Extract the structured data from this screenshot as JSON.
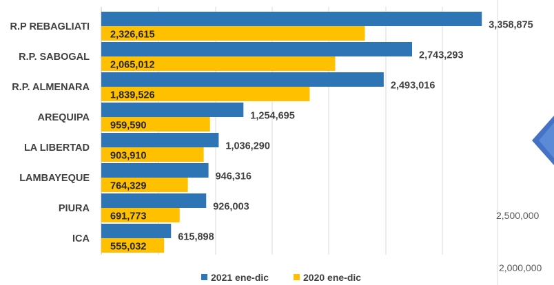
{
  "chart_data": {
    "type": "bar",
    "orientation": "horizontal",
    "categories": [
      "R.P REBAGLIATI",
      "R.P. SABOGAL",
      "R.P. ALMENARA",
      "AREQUIPA",
      "LA LIBERTAD",
      "LAMBAYEQUE",
      "PIURA",
      "ICA"
    ],
    "series": [
      {
        "name": "2021 ene-dic",
        "color": "#2E75B6",
        "values": [
          3358875,
          2743293,
          2493016,
          1254695,
          1036290,
          946316,
          926003,
          615898
        ],
        "labels": [
          "3,358,875",
          "2,743,293",
          "2,493,016",
          "1,254,695",
          "1,036,290",
          "946,316",
          "926,003",
          "615,898"
        ]
      },
      {
        "name": "2020 ene-dic",
        "color": "#FFC000",
        "values": [
          2326615,
          2065012,
          1839526,
          959590,
          903910,
          764329,
          691773,
          555032
        ],
        "labels": [
          "2,326,615",
          "2,065,012",
          "1,839,526",
          "959,590",
          "903,910",
          "764,329",
          "691,773",
          "555,032"
        ]
      }
    ],
    "xlim": [
      0,
      3400000
    ],
    "grid": true,
    "legend": "bottom",
    "title": "",
    "xlabel": "",
    "ylabel": ""
  },
  "side_axis": {
    "ticks": [
      "2,500,000",
      "2,000,000"
    ]
  },
  "shape_color": "#4472C4"
}
